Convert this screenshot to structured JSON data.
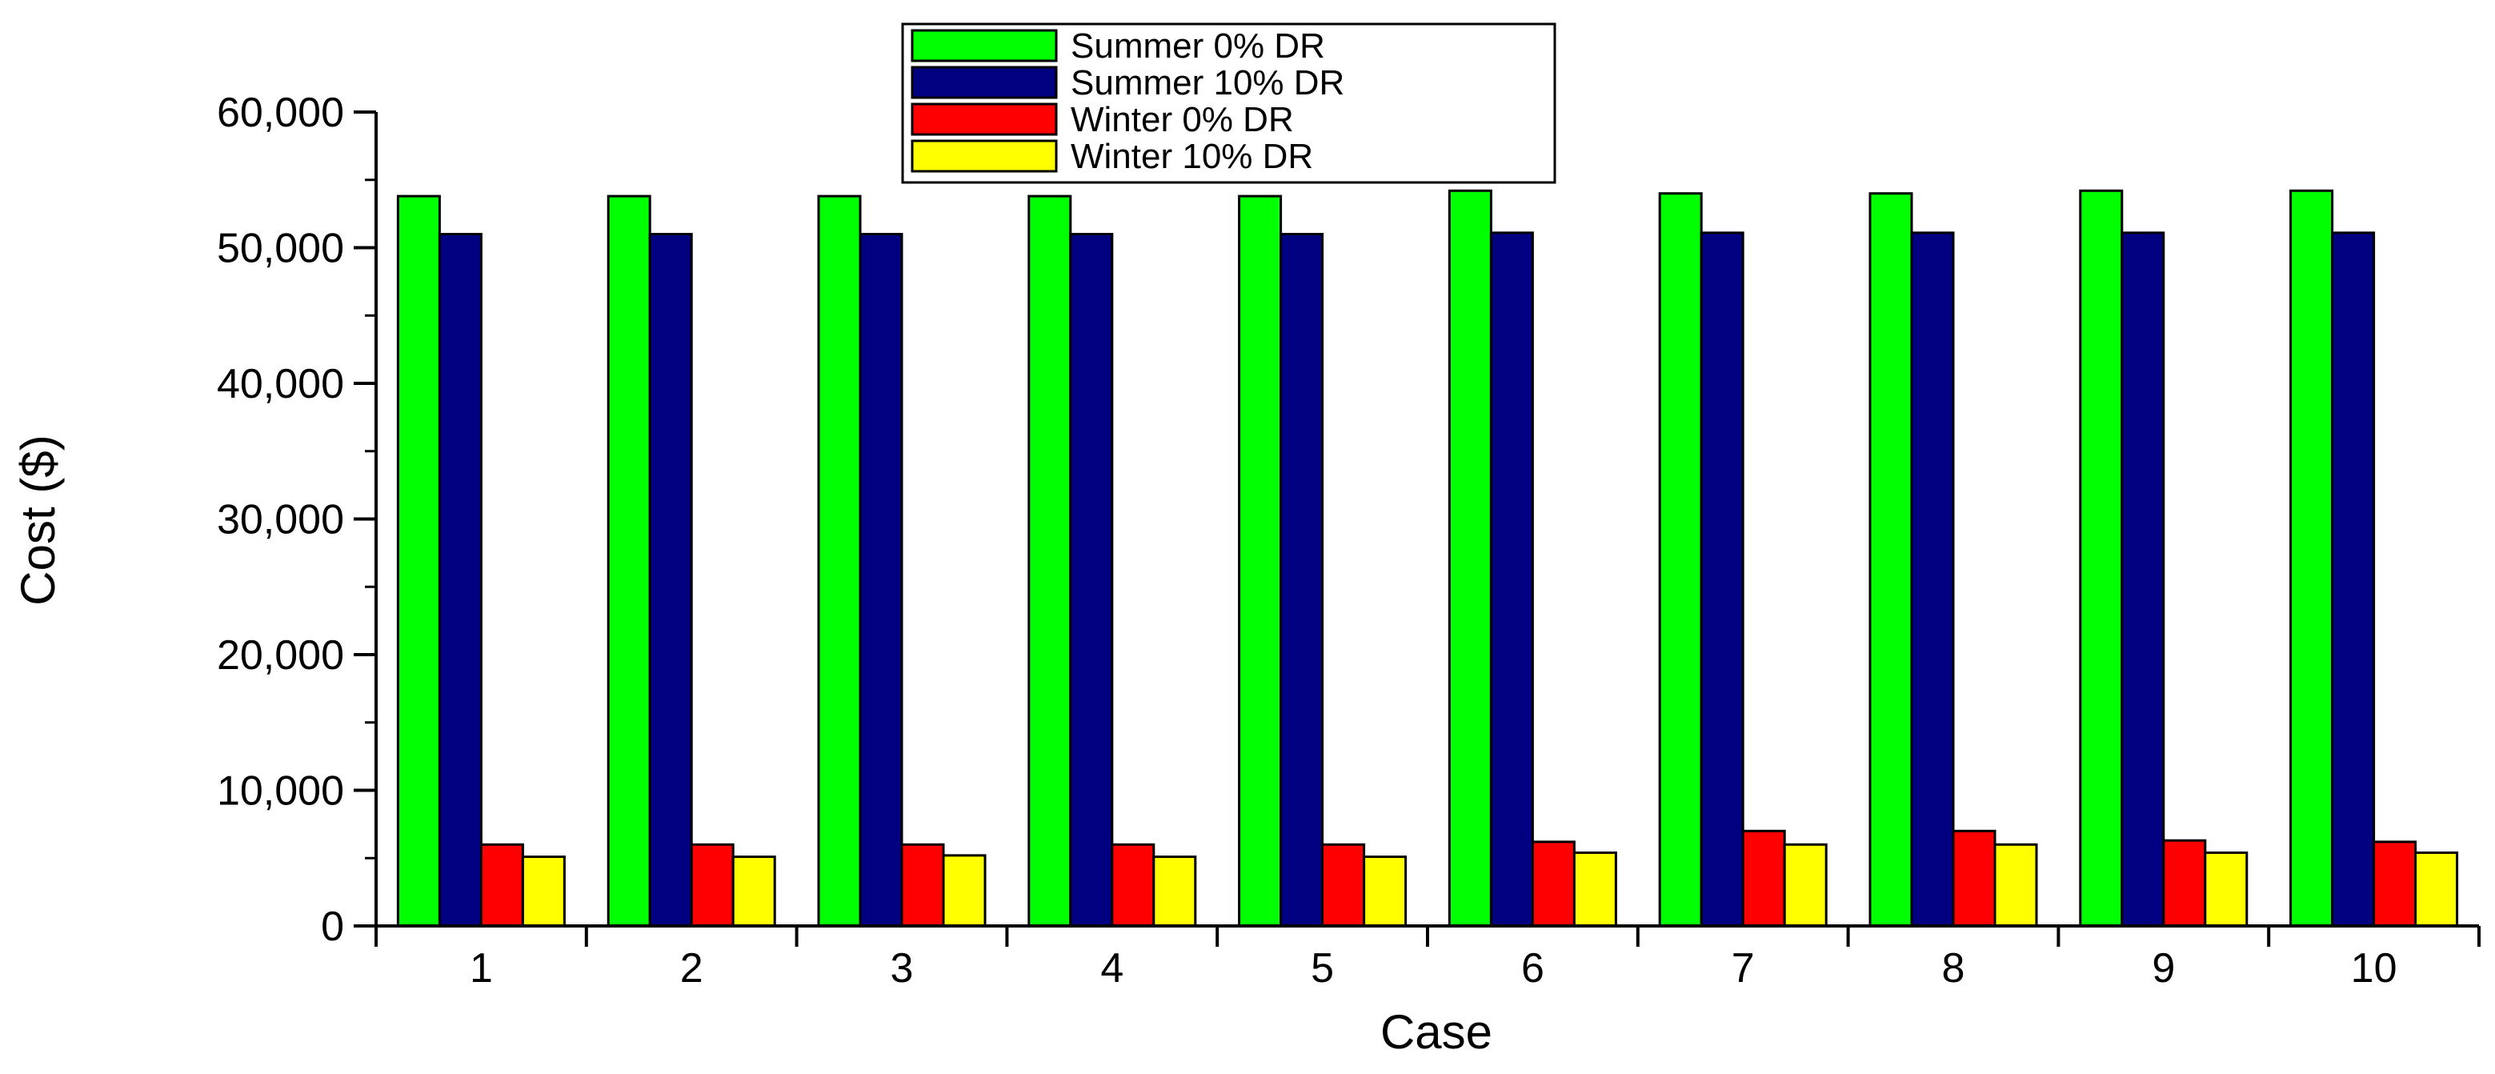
{
  "chart_data": {
    "type": "bar",
    "xlabel": "Case",
    "ylabel": "Cost ($)",
    "categories": [
      "1",
      "2",
      "3",
      "4",
      "5",
      "6",
      "7",
      "8",
      "9",
      "10"
    ],
    "ylim": [
      0,
      60000
    ],
    "yticks": [
      0,
      10000,
      20000,
      30000,
      40000,
      50000,
      60000
    ],
    "ytick_labels": [
      "0",
      "10,000",
      "20,000",
      "30,000",
      "40,000",
      "50,000",
      "60,000"
    ],
    "grid": false,
    "legend_position": "top-center",
    "series": [
      {
        "name": "Summer 0% DR",
        "color": "#00ff00",
        "values": [
          53800,
          53800,
          53800,
          53800,
          53800,
          54200,
          54000,
          54000,
          54200,
          54200
        ]
      },
      {
        "name": "Summer 10% DR",
        "color": "#000080",
        "values": [
          51000,
          51000,
          51000,
          51000,
          51000,
          51100,
          51100,
          51100,
          51100,
          51100
        ]
      },
      {
        "name": "Winter 0% DR",
        "color": "#ff0000",
        "values": [
          6000,
          6000,
          6000,
          6000,
          6000,
          6200,
          7000,
          7000,
          6300,
          6200
        ]
      },
      {
        "name": "Winter 10% DR",
        "color": "#ffff00",
        "values": [
          5100,
          5100,
          5200,
          5100,
          5100,
          5400,
          6000,
          6000,
          5400,
          5400
        ]
      }
    ]
  }
}
